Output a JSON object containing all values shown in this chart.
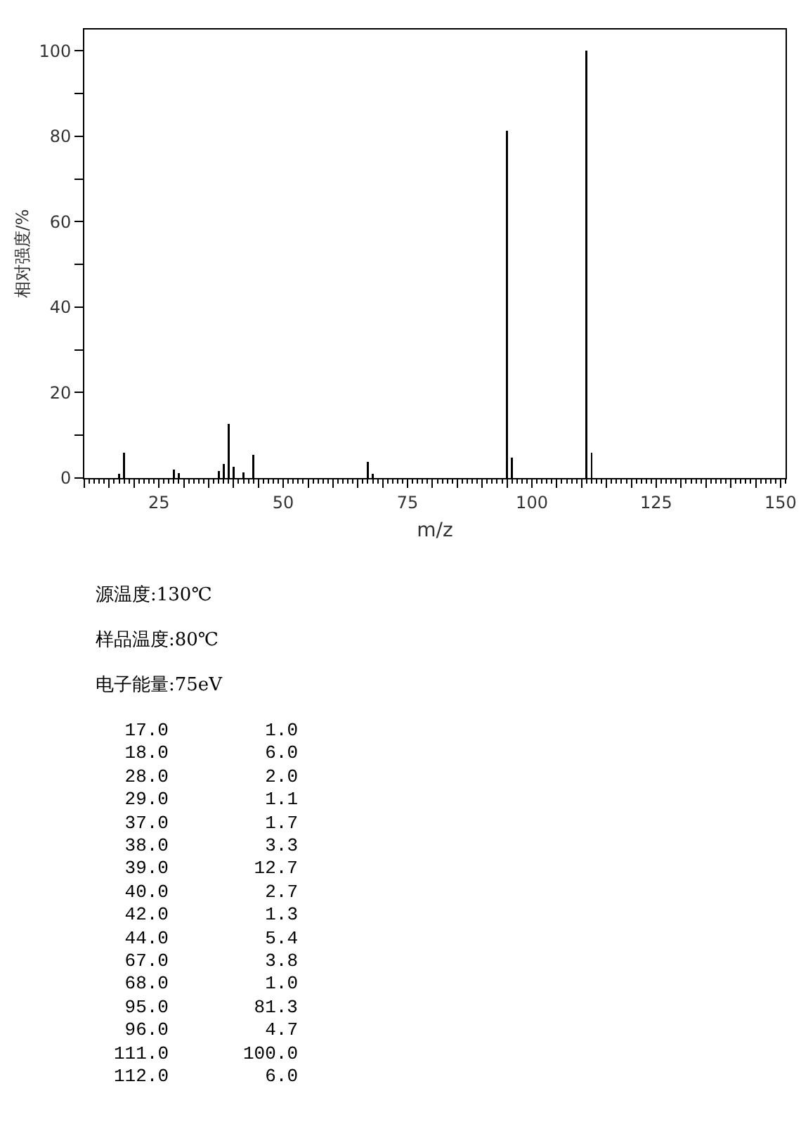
{
  "chart_data": {
    "type": "bar",
    "xlabel": "m/z",
    "ylabel": "相对强度/%",
    "x": [
      17,
      18,
      28,
      29,
      37,
      38,
      39,
      40,
      42,
      44,
      67,
      68,
      95,
      96,
      111,
      112
    ],
    "values": [
      1.0,
      6.0,
      2.0,
      1.1,
      1.7,
      3.3,
      12.7,
      2.7,
      1.3,
      5.4,
      3.8,
      1.0,
      81.3,
      4.7,
      100.0,
      6.0
    ],
    "color": "#000000",
    "xlim": [
      10,
      151
    ],
    "xticks": [
      {
        "value": 10,
        "label": null
      },
      {
        "value": 15,
        "label": null
      },
      {
        "value": 20,
        "label": null
      },
      25,
      {
        "value": 30,
        "label": null
      },
      {
        "value": 35,
        "label": null
      },
      {
        "value": 40,
        "label": null
      },
      {
        "value": 45,
        "label": null
      },
      50,
      {
        "value": 55,
        "label": null
      },
      {
        "value": 60,
        "label": null
      },
      {
        "value": 65,
        "label": null
      },
      {
        "value": 70,
        "label": null
      },
      75,
      {
        "value": 80,
        "label": null
      },
      {
        "value": 85,
        "label": null
      },
      {
        "value": 90,
        "label": null
      },
      {
        "value": 95,
        "label": null
      },
      100,
      {
        "value": 105,
        "label": null
      },
      {
        "value": 110,
        "label": null
      },
      {
        "value": 115,
        "label": null
      },
      {
        "value": 120,
        "label": null
      },
      125,
      {
        "value": 130,
        "label": null
      },
      {
        "value": 135,
        "label": null
      },
      {
        "value": 140,
        "label": null
      },
      {
        "value": 145,
        "label": null
      },
      150
    ],
    "ylim": [
      0,
      105
    ],
    "yticks": [
      0,
      {
        "value": 10,
        "label": null
      },
      20,
      {
        "value": 30,
        "label": null
      },
      40,
      {
        "value": 50,
        "label": null
      },
      60,
      {
        "value": 70,
        "label": null
      },
      80,
      {
        "value": 90,
        "label": null
      },
      100
    ],
    "grid": false,
    "legend": false,
    "annotations": [
      "源温度:130℃",
      "样品温度:80℃",
      "电子能量:75eV",
      "17.0        1.0",
      "18.0        6.0",
      "28.0        2.0",
      "29.0        1.1",
      "37.0        1.7",
      "38.0        3.3",
      "39.0       12.7",
      "40.0        2.7",
      "42.0        1.3",
      "44.0        5.4",
      "67.0        3.8",
      "68.0        1.0",
      "95.0       81.3",
      "96.0        4.7",
      "111.0      100.0",
      "112.0        6.0"
    ]
  }
}
